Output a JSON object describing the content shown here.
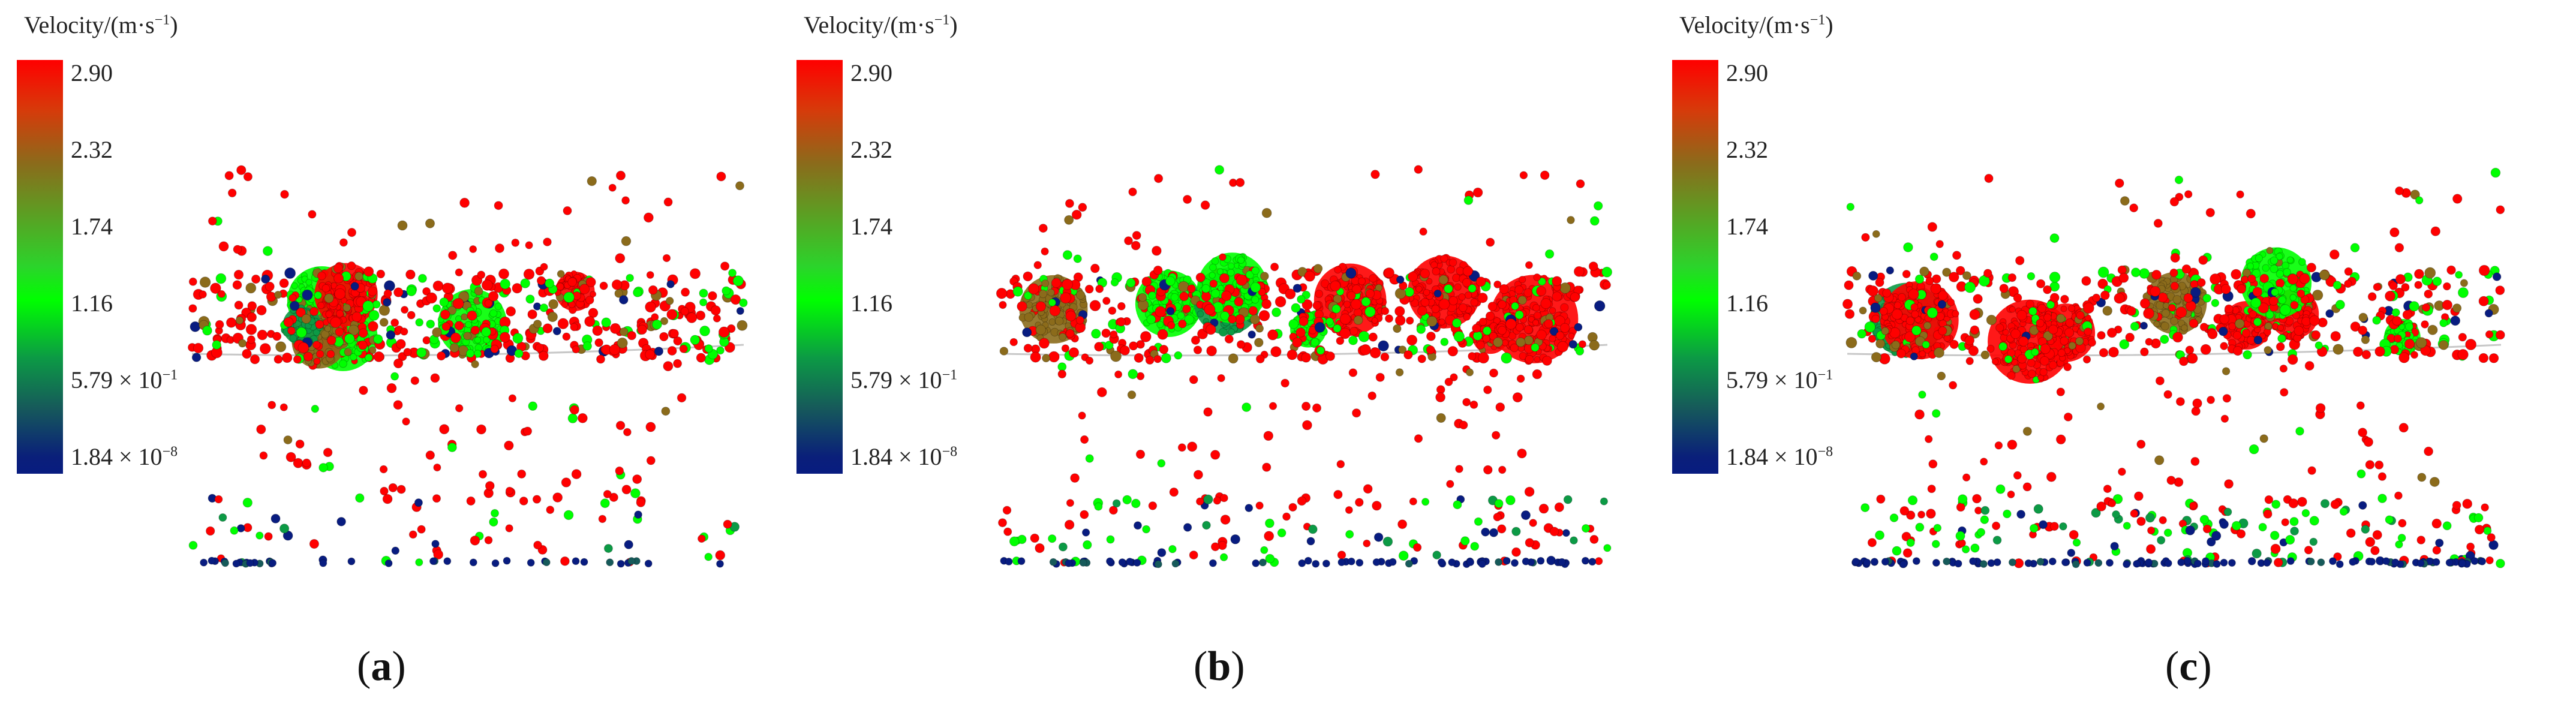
{
  "colorbar": {
    "title_prefix": "Velocity/(m·s",
    "title_sup": "−1",
    "title_suffix": ")",
    "ticks": [
      {
        "main": "2.90",
        "sup": ""
      },
      {
        "main": "2.32",
        "sup": ""
      },
      {
        "main": "1.74",
        "sup": ""
      },
      {
        "main": "1.16",
        "sup": ""
      },
      {
        "main": "5.79 × 10",
        "sup": "−1"
      },
      {
        "main": "1.84 × 10",
        "sup": "−8"
      }
    ],
    "colors": [
      "#ff0000",
      "#8b6b1b",
      "#00ff00",
      "#0c9a45",
      "#165a5a",
      "#081c80"
    ]
  },
  "panels": [
    {
      "letter": "a",
      "open": "(",
      "close": ")"
    },
    {
      "letter": "b",
      "open": "(",
      "close": ")"
    },
    {
      "letter": "c",
      "open": "(",
      "close": ")"
    }
  ]
}
